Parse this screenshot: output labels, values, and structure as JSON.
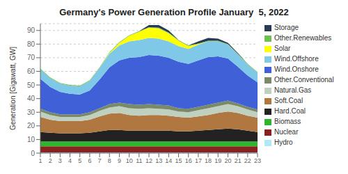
{
  "chart_data": {
    "type": "area",
    "stacked": true,
    "title": "Germany's Power Generation Profile January  5, 2022",
    "y_label": "Generation [Gigawatt, GW]",
    "x": [
      1,
      2,
      3,
      4,
      5,
      6,
      7,
      8,
      9,
      10,
      11,
      12,
      13,
      14,
      15,
      16,
      17,
      18,
      19,
      20,
      21,
      22,
      23
    ],
    "xlim": [
      1,
      23
    ],
    "xticks": [
      1,
      2,
      3,
      4,
      5,
      6,
      7,
      8,
      9,
      10,
      11,
      12,
      13,
      14,
      15,
      16,
      17,
      18,
      19,
      20,
      21,
      22,
      23
    ],
    "ylim": [
      0,
      95
    ],
    "yticks": [
      0,
      10,
      20,
      30,
      40,
      50,
      60,
      70,
      80,
      90
    ],
    "grid": true,
    "legend": "right",
    "series": [
      {
        "name": "Hydro",
        "color": "#b0e8f8",
        "values": [
          0.5,
          0.5,
          0.5,
          0.5,
          0.5,
          0.5,
          0.5,
          0.5,
          0.5,
          0.5,
          0.5,
          0.5,
          0.5,
          0.5,
          0.5,
          0.5,
          0.5,
          0.5,
          0.5,
          0.5,
          0.5,
          0.5,
          0.5
        ]
      },
      {
        "name": "Nuclear",
        "color": "#8b2020",
        "values": [
          4.5,
          4.5,
          4.5,
          4.5,
          4.5,
          4.5,
          4.5,
          4.5,
          4.5,
          4.5,
          4.5,
          4.5,
          4.5,
          4.5,
          4.5,
          4.5,
          4.5,
          4.5,
          4.5,
          4.5,
          4.5,
          4.5,
          4.5
        ]
      },
      {
        "name": "Biomass",
        "color": "#2db52d",
        "values": [
          3.5,
          3.5,
          3.5,
          3.5,
          3.5,
          3.5,
          3.5,
          3.5,
          3.5,
          3.5,
          3.5,
          3.5,
          3.5,
          3.5,
          3.5,
          3.5,
          3.5,
          3.5,
          3.5,
          3.5,
          3.5,
          3.5,
          3.5
        ]
      },
      {
        "name": "Hard.Coal",
        "color": "#222222",
        "values": [
          7.0,
          6.5,
          6.0,
          6.0,
          6.0,
          6.5,
          7.5,
          8.5,
          8.5,
          8.0,
          8.0,
          8.0,
          8.0,
          8.0,
          7.5,
          7.5,
          8.0,
          8.5,
          9.0,
          9.5,
          9.0,
          8.0,
          7.0
        ]
      },
      {
        "name": "Soft.Coal",
        "color": "#b07840",
        "values": [
          11.0,
          9.5,
          9.0,
          9.0,
          9.0,
          9.5,
          11.0,
          12.0,
          12.5,
          11.5,
          11.0,
          11.5,
          11.5,
          11.0,
          10.5,
          10.0,
          10.5,
          11.0,
          12.0,
          12.5,
          12.0,
          11.0,
          10.5
        ]
      },
      {
        "name": "Natural.Gas",
        "color": "#c0d0c0",
        "values": [
          4.0,
          3.5,
          3.0,
          3.0,
          3.0,
          3.5,
          4.0,
          4.5,
          5.0,
          5.0,
          5.0,
          5.0,
          4.5,
          4.5,
          4.0,
          4.0,
          4.5,
          5.0,
          5.0,
          5.5,
          5.0,
          4.5,
          4.0
        ]
      },
      {
        "name": "Other.Conventional",
        "color": "#7a8a68",
        "values": [
          2.0,
          2.0,
          2.0,
          2.0,
          2.0,
          2.0,
          2.0,
          2.5,
          2.5,
          3.0,
          3.0,
          3.0,
          3.0,
          3.0,
          2.5,
          2.5,
          2.5,
          2.5,
          2.5,
          2.5,
          2.0,
          2.0,
          2.0
        ]
      },
      {
        "name": "Wind.Onshore",
        "color": "#4060d8",
        "values": [
          22.0,
          18.5,
          16.5,
          15.0,
          14.5,
          16.0,
          21.0,
          27.0,
          31.0,
          34.0,
          35.0,
          36.0,
          36.0,
          35.0,
          34.0,
          33.0,
          34.0,
          35.0,
          34.0,
          31.0,
          27.0,
          23.0,
          20.0
        ]
      },
      {
        "name": "Wind.Offshore",
        "color": "#80c8e8",
        "values": [
          7.0,
          6.5,
          6.0,
          6.0,
          6.0,
          7.0,
          8.5,
          10.0,
          11.0,
          12.0,
          12.5,
          12.5,
          12.5,
          12.0,
          11.5,
          11.0,
          11.5,
          11.5,
          11.0,
          10.0,
          9.0,
          8.0,
          7.0
        ]
      },
      {
        "name": "Solar",
        "color": "#ffff00",
        "values": [
          0.0,
          0.0,
          0.0,
          0.0,
          0.0,
          0.0,
          0.0,
          0.5,
          2.0,
          4.0,
          6.0,
          7.5,
          7.5,
          6.0,
          4.0,
          2.0,
          0.5,
          0.0,
          0.0,
          0.0,
          0.0,
          0.0,
          0.0
        ]
      },
      {
        "name": "Other.Renewables",
        "color": "#70c050",
        "values": [
          0.5,
          0.5,
          0.5,
          0.5,
          0.5,
          0.5,
          0.5,
          0.5,
          0.5,
          0.5,
          0.5,
          0.5,
          0.5,
          0.5,
          0.5,
          0.5,
          0.5,
          0.5,
          0.5,
          0.5,
          0.5,
          0.5,
          0.5
        ]
      },
      {
        "name": "Storage",
        "color": "#2a3a54",
        "values": [
          0.0,
          0.0,
          0.0,
          0.0,
          0.0,
          0.0,
          0.0,
          0.0,
          0.0,
          0.0,
          0.0,
          1.5,
          2.0,
          1.5,
          0.0,
          0.0,
          1.5,
          2.0,
          1.5,
          1.0,
          0.5,
          0.0,
          0.0
        ]
      }
    ]
  }
}
